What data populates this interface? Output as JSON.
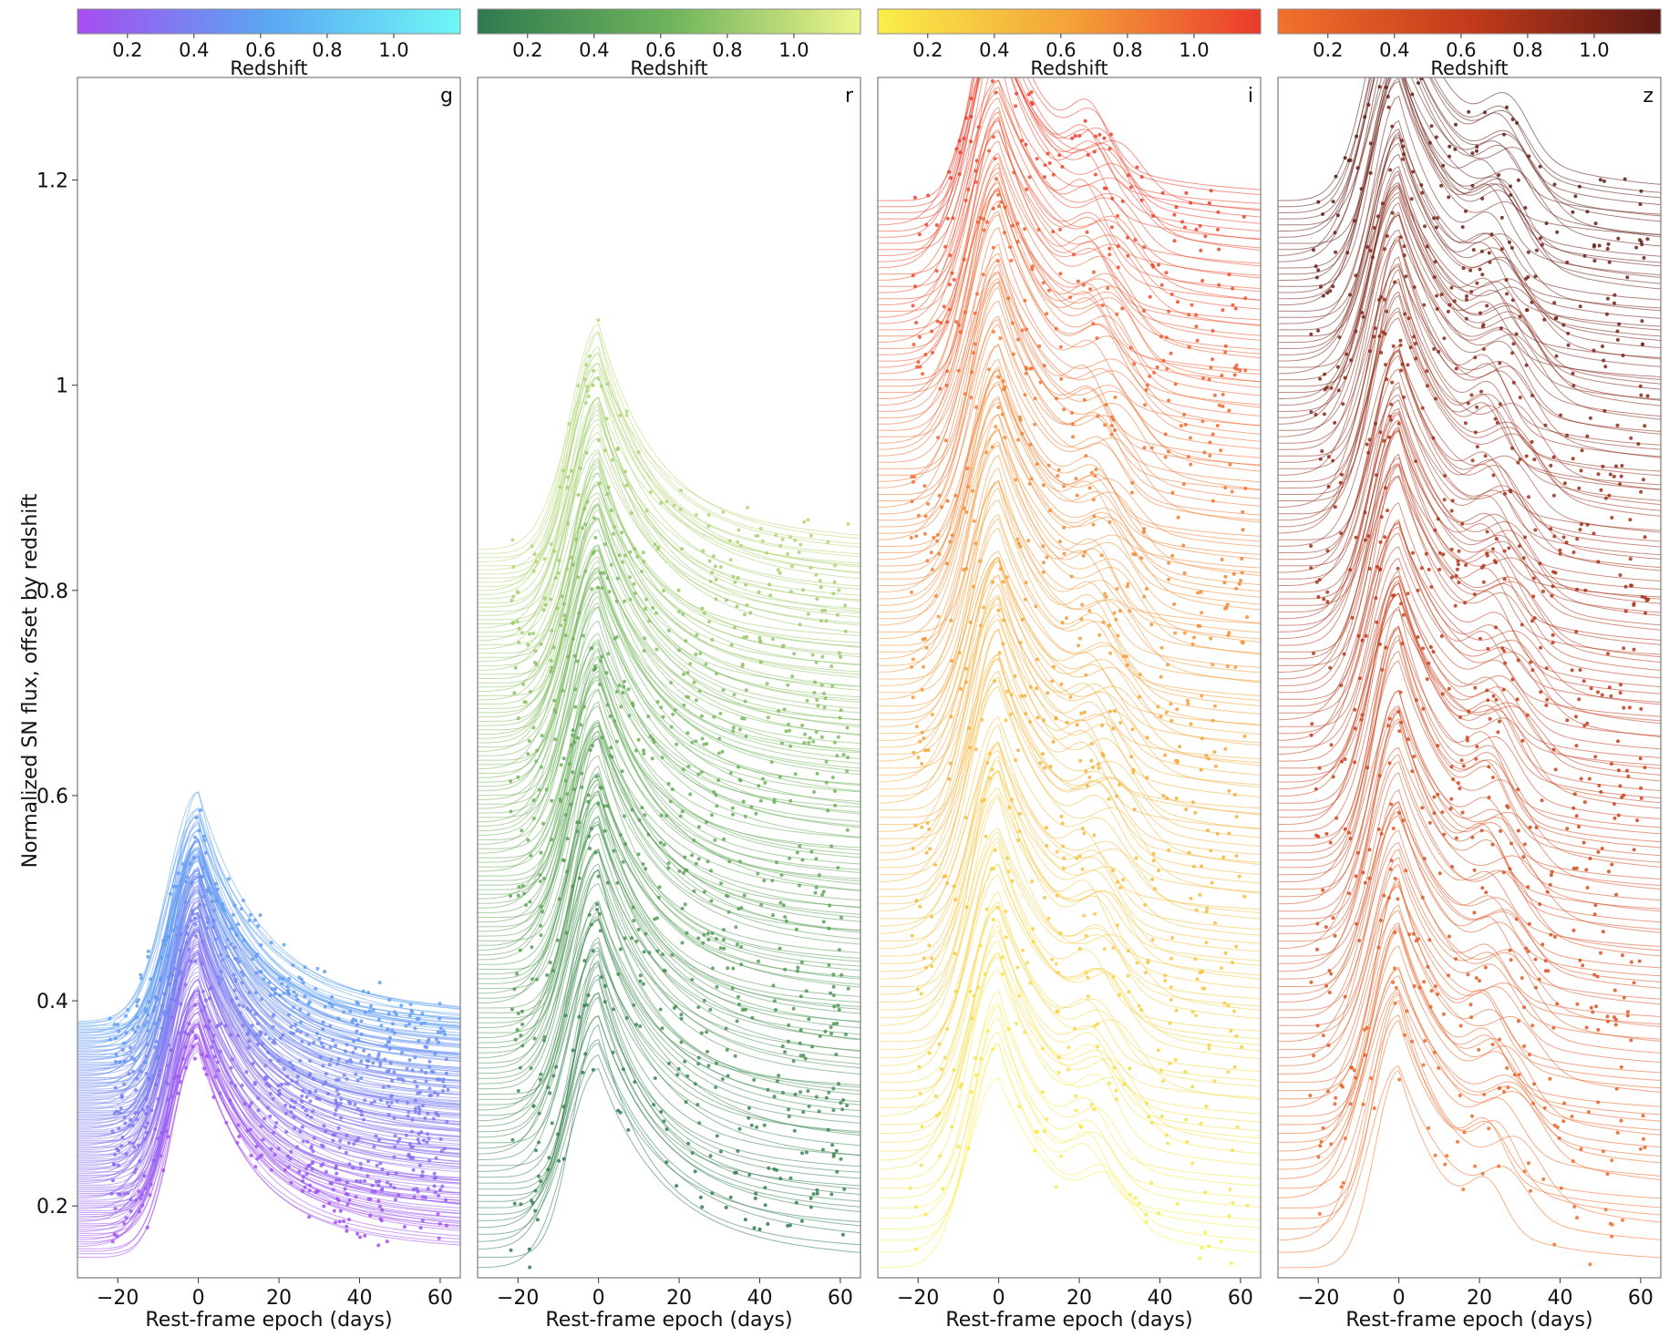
{
  "chart_data": {
    "type": "line",
    "ylabel": "Normalized SN flux, offset by redshift",
    "xlabel": "Rest-frame epoch (days)",
    "xlim": [
      -30,
      65
    ],
    "ylim": [
      0.13,
      1.3
    ],
    "xticks": [
      -20,
      0,
      20,
      40,
      60
    ],
    "yticks": [
      0.2,
      0.4,
      0.6,
      0.8,
      1,
      1.2
    ],
    "ytick_labels": [
      "0.2",
      "0.4",
      "0.6",
      "0.8",
      "1",
      "1.2"
    ],
    "colorbar": {
      "label": "Redshift",
      "range": [
        0.05,
        1.2
      ],
      "ticks": [
        0.2,
        0.4,
        0.6,
        0.8,
        1.0
      ],
      "tick_labels": [
        "0.2",
        "0.4",
        "0.6",
        "0.8",
        "1.0"
      ]
    },
    "panels": [
      {
        "band": "g",
        "cmap": [
          "#a64cf0",
          "#5aa7f2",
          "#6ff7f5"
        ],
        "baseline_range": [
          0.15,
          0.38
        ],
        "peak_offset": 0.2,
        "redshift_range": [
          0.05,
          0.6
        ]
      },
      {
        "band": "r",
        "cmap": [
          "#2e7a4f",
          "#6eb35c",
          "#eef58a"
        ],
        "baseline_range": [
          0.14,
          0.84
        ],
        "peak_offset": 0.2,
        "redshift_range": [
          0.05,
          0.95
        ]
      },
      {
        "band": "i",
        "cmap": [
          "#f9ef4a",
          "#f4a238",
          "#ea3a2b"
        ],
        "baseline_range": [
          0.14,
          1.18
        ],
        "peak_offset": 0.2,
        "redshift_range": [
          0.05,
          1.2
        ]
      },
      {
        "band": "z",
        "cmap": [
          "#f2712c",
          "#c23a1b",
          "#5c1a14"
        ],
        "baseline_range": [
          0.14,
          1.18
        ],
        "peak_offset": 0.2,
        "redshift_range": [
          0.05,
          1.2
        ]
      }
    ]
  }
}
